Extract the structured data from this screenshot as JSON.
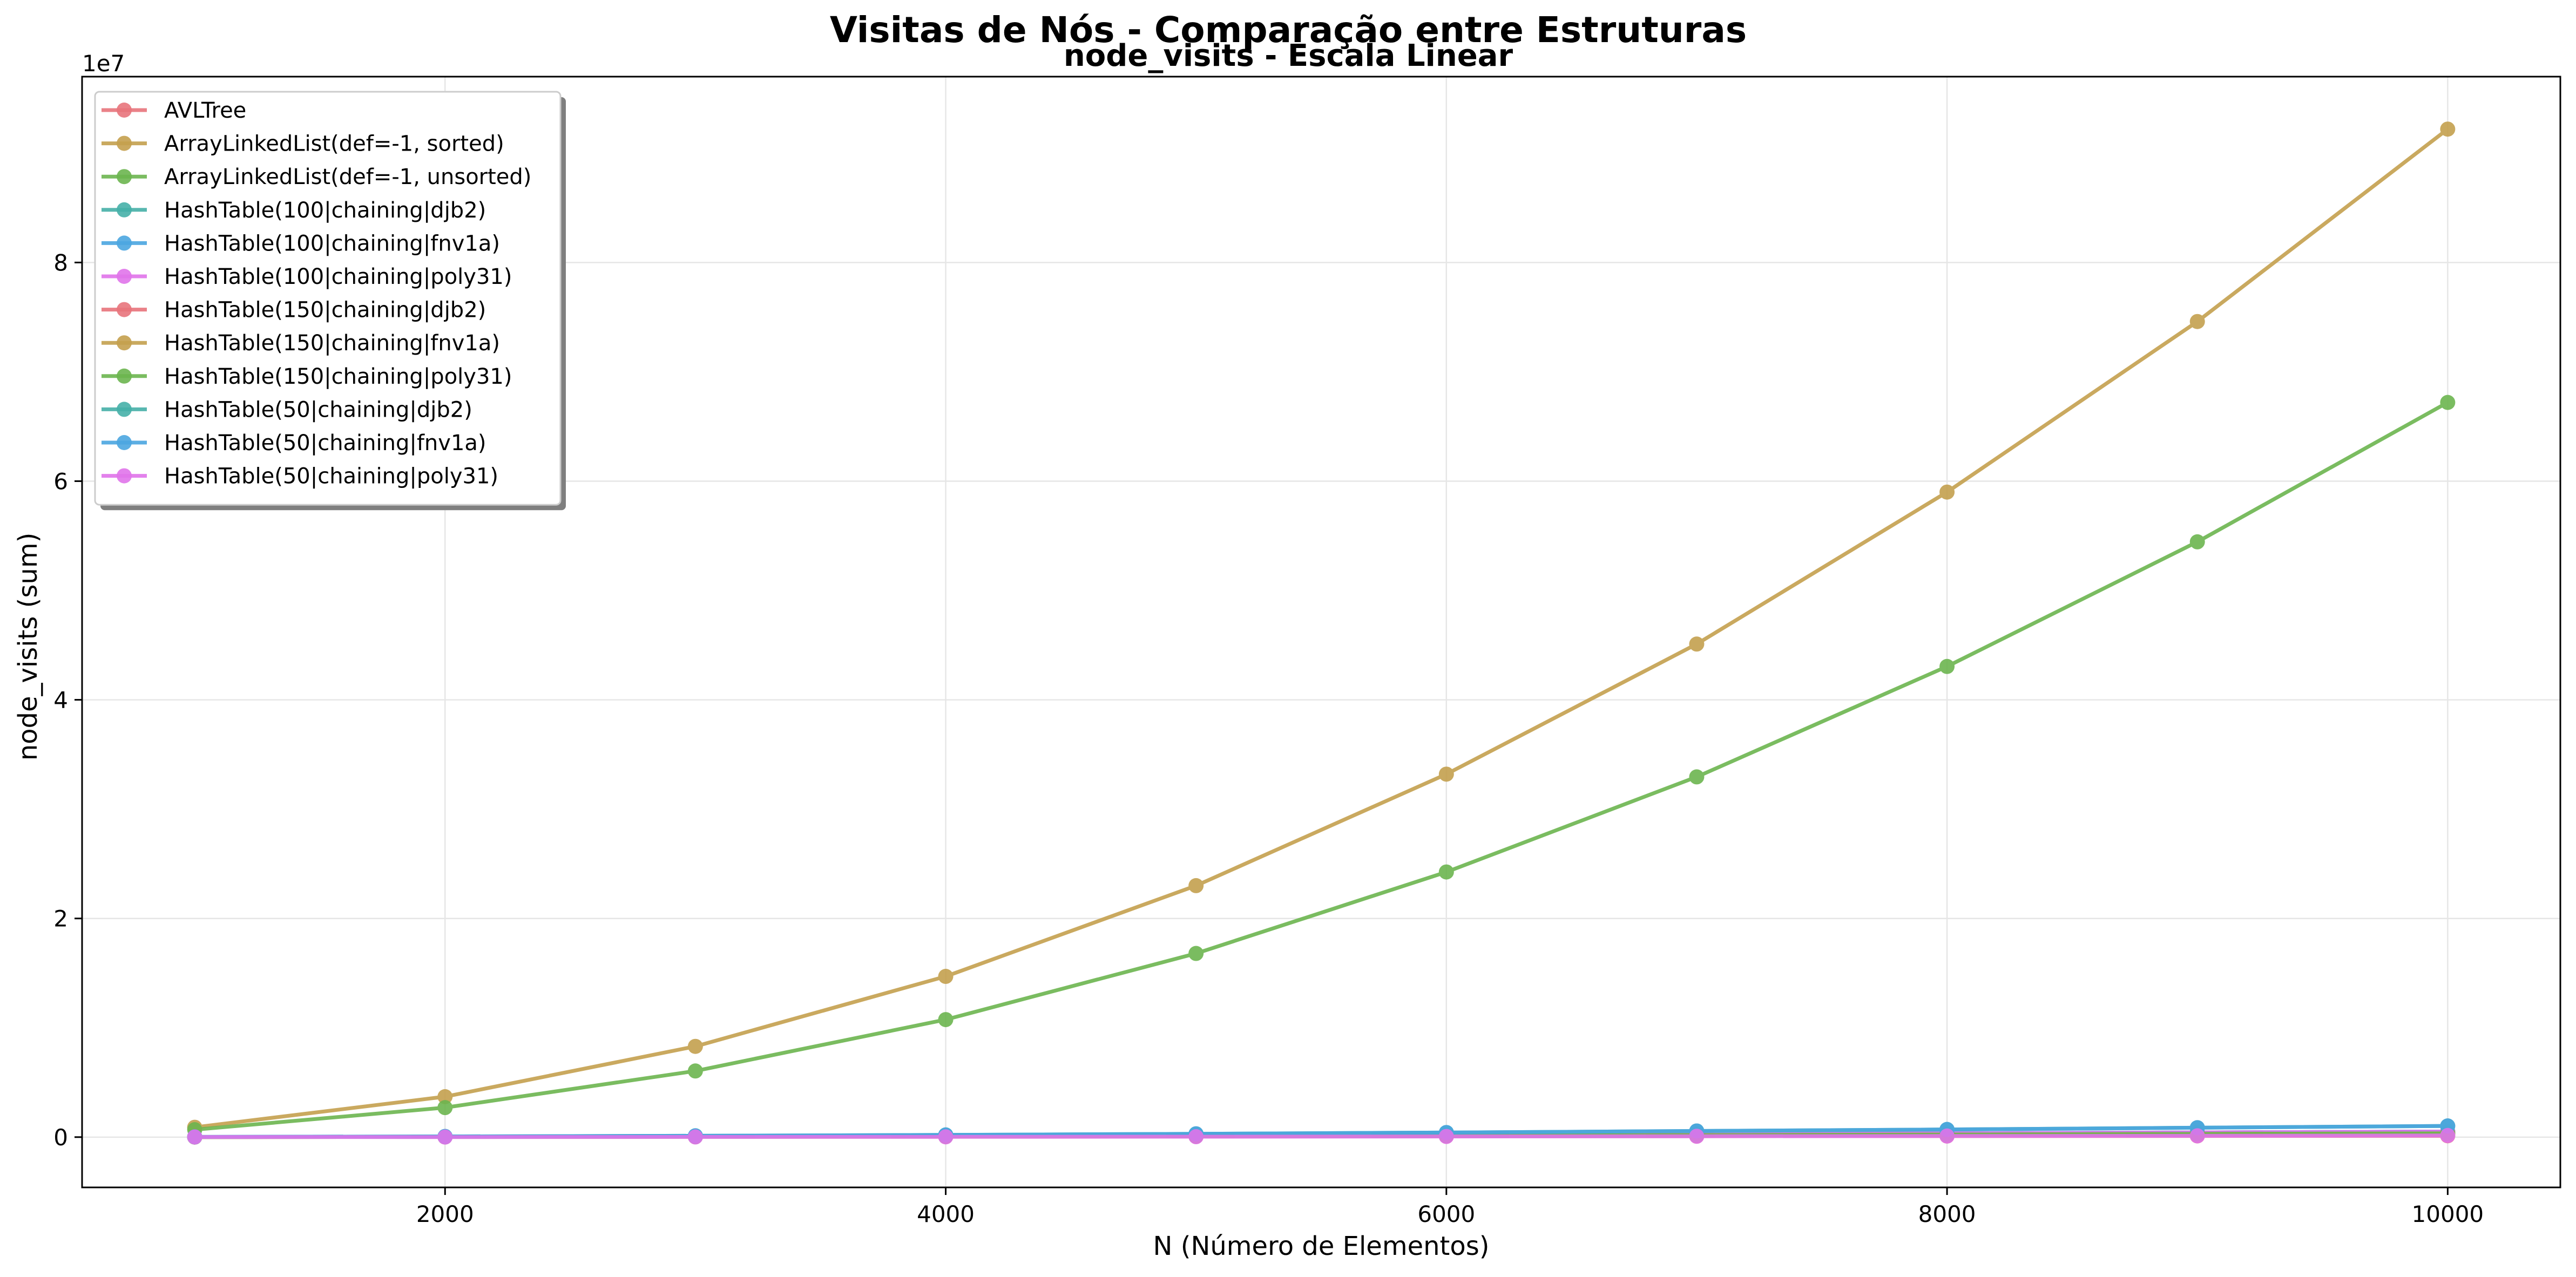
{
  "figure": {
    "suptitle": "Visitas de Nós - Comparação entre Estruturas"
  },
  "chart_data": {
    "type": "line",
    "title": "node_visits - Escala Linear",
    "xlabel": "N (Número de Elementos)",
    "ylabel": "node_visits (sum)",
    "y_offset_text": "1e7",
    "y_scale_factor": 10000000,
    "xlim": [
      550,
      10450
    ],
    "ylim": [
      -4600000,
      97000000
    ],
    "x_ticks": [
      2000,
      4000,
      6000,
      8000,
      10000
    ],
    "y_ticks": [
      0,
      20000000,
      40000000,
      60000000,
      80000000
    ],
    "y_tick_labels": [
      "0",
      "2",
      "4",
      "6",
      "8"
    ],
    "grid": true,
    "legend_position": "upper left",
    "x": [
      1000,
      2000,
      3000,
      4000,
      5000,
      6000,
      7000,
      8000,
      9000,
      10000
    ],
    "series": [
      {
        "name": "AVLTree",
        "color": "#e8747c",
        "values": [
          10000,
          21000,
          33000,
          45000,
          58000,
          70000,
          83000,
          96000,
          109000,
          122000
        ]
      },
      {
        "name": "ArrayLinkedList(def=-1, sorted)",
        "color": "#c4a04e",
        "values": [
          900000,
          3700000,
          8300000,
          14700000,
          23000000,
          33200000,
          45100000,
          59000000,
          74600000,
          92200000
        ]
      },
      {
        "name": "ArrayLinkedList(def=-1, unsorted)",
        "color": "#6cb54f",
        "values": [
          680000,
          2700000,
          6050000,
          10750000,
          16800000,
          24250000,
          32950000,
          43050000,
          54450000,
          67200000
        ]
      },
      {
        "name": "HashTable(100|chaining|djb2)",
        "color": "#46b0a8",
        "values": [
          10000,
          30000,
          60000,
          100000,
          150000,
          210000,
          280000,
          350000,
          430000,
          510000
        ]
      },
      {
        "name": "HashTable(100|chaining|fnv1a)",
        "color": "#4ba6e0",
        "values": [
          10000,
          30000,
          60000,
          100000,
          150000,
          210000,
          280000,
          350000,
          430000,
          510000
        ]
      },
      {
        "name": "HashTable(100|chaining|poly31)",
        "color": "#e074ea",
        "values": [
          10000,
          30000,
          60000,
          100000,
          150000,
          210000,
          280000,
          350000,
          430000,
          510000
        ]
      },
      {
        "name": "HashTable(150|chaining|djb2)",
        "color": "#e8747c",
        "values": [
          5000,
          20000,
          40000,
          70000,
          100000,
          140000,
          180000,
          230000,
          290000,
          340000
        ]
      },
      {
        "name": "HashTable(150|chaining|fnv1a)",
        "color": "#c4a04e",
        "values": [
          5000,
          20000,
          40000,
          70000,
          100000,
          140000,
          180000,
          230000,
          290000,
          340000
        ]
      },
      {
        "name": "HashTable(150|chaining|poly31)",
        "color": "#6cb54f",
        "values": [
          5000,
          20000,
          40000,
          70000,
          100000,
          140000,
          180000,
          230000,
          290000,
          340000
        ]
      },
      {
        "name": "HashTable(50|chaining|djb2)",
        "color": "#46b0a8",
        "values": [
          20000,
          60000,
          120000,
          200000,
          300000,
          420000,
          560000,
          700000,
          860000,
          1020000
        ]
      },
      {
        "name": "HashTable(50|chaining|fnv1a)",
        "color": "#4ba6e0",
        "values": [
          20000,
          60000,
          120000,
          200000,
          300000,
          420000,
          560000,
          700000,
          860000,
          1020000
        ]
      },
      {
        "name": "HashTable(50|chaining|poly31)",
        "color": "#e074ea",
        "values": [
          10000,
          5000,
          15000,
          25000,
          40000,
          60000,
          80000,
          100000,
          120000,
          150000
        ]
      }
    ]
  }
}
